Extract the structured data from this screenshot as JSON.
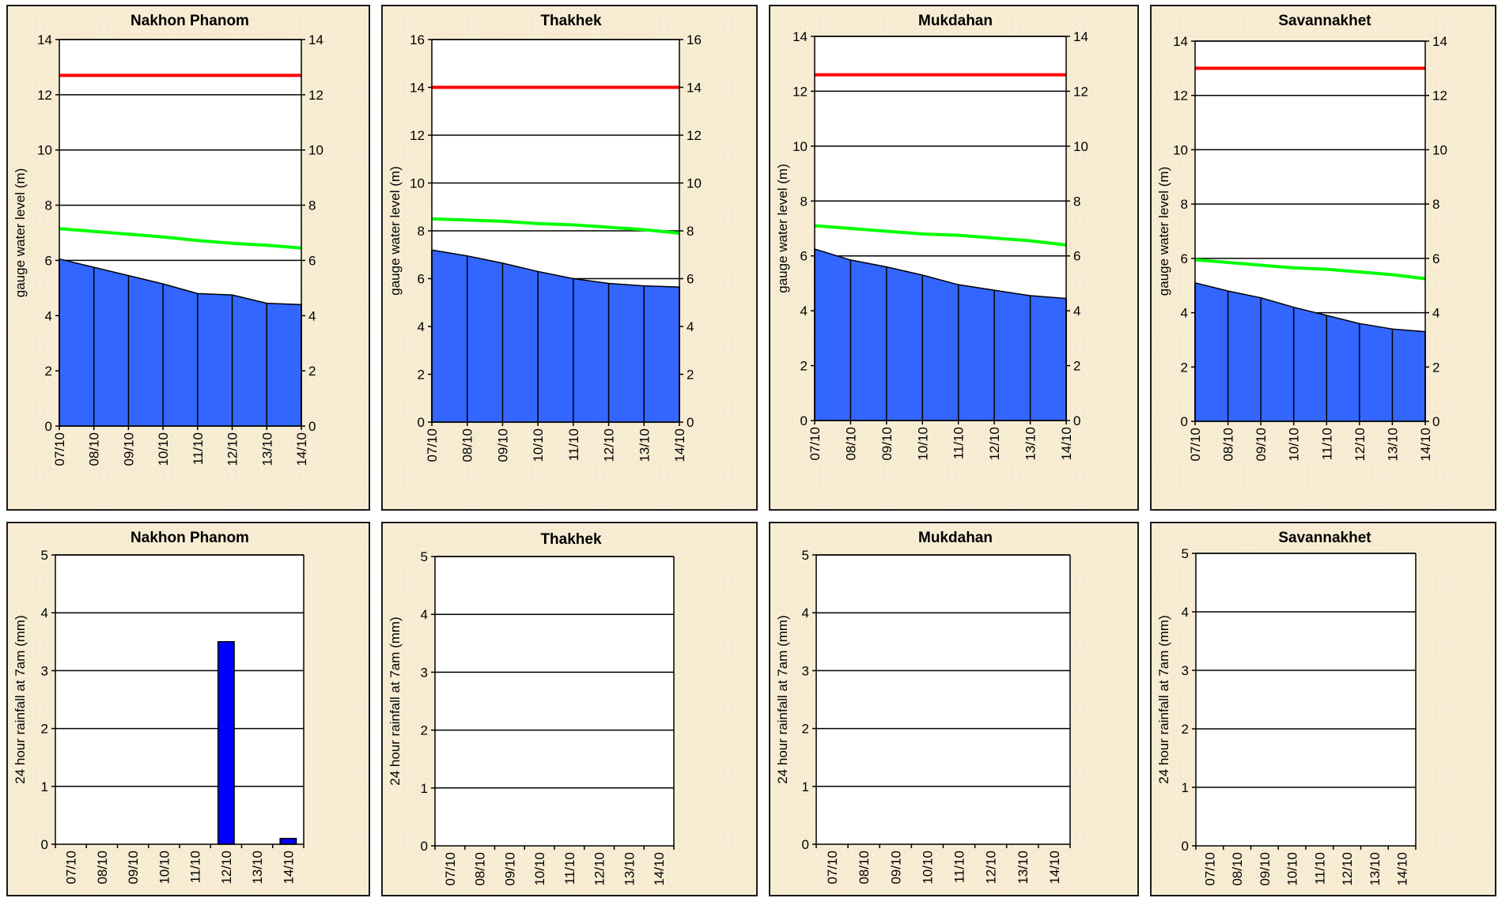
{
  "chart_data": [
    {
      "type": "area",
      "title": "Nakhon Phanom",
      "ylabel": "gauge water level (m)",
      "categories": [
        "07/10",
        "08/10",
        "09/10",
        "10/10",
        "11/10",
        "12/10",
        "13/10",
        "14/10"
      ],
      "ylim": [
        0,
        14
      ],
      "yticks": [
        0,
        2,
        4,
        6,
        8,
        10,
        12,
        14
      ],
      "right_axis": true,
      "grid": true,
      "values": [
        6.05,
        5.75,
        5.45,
        5.15,
        4.8,
        4.75,
        4.45,
        4.4
      ],
      "lines": [
        {
          "color": "#ff0000",
          "values": [
            12.7,
            12.7,
            12.7,
            12.7,
            12.7,
            12.7,
            12.7,
            12.7
          ]
        },
        {
          "color": "#00ff00",
          "values": [
            7.15,
            7.05,
            6.95,
            6.85,
            6.72,
            6.62,
            6.55,
            6.45
          ]
        }
      ]
    },
    {
      "type": "area",
      "title": "Thakhek",
      "ylabel": "gauge water level (m)",
      "categories": [
        "07/10",
        "08/10",
        "09/10",
        "10/10",
        "11/10",
        "12/10",
        "13/10",
        "14/10"
      ],
      "ylim": [
        0,
        16
      ],
      "yticks": [
        0,
        2,
        4,
        6,
        8,
        10,
        12,
        14,
        16
      ],
      "right_axis": true,
      "grid": true,
      "values": [
        7.2,
        6.95,
        6.65,
        6.3,
        6.0,
        5.8,
        5.7,
        5.65
      ],
      "lines": [
        {
          "color": "#ff0000",
          "values": [
            14.0,
            14.0,
            14.0,
            14.0,
            14.0,
            14.0,
            14.0,
            14.0
          ]
        },
        {
          "color": "#00ff00",
          "values": [
            8.5,
            8.45,
            8.4,
            8.3,
            8.25,
            8.15,
            8.05,
            7.9
          ]
        }
      ]
    },
    {
      "type": "area",
      "title": "Mukdahan",
      "ylabel": "gauge water level (m)",
      "categories": [
        "07/10",
        "08/10",
        "09/10",
        "10/10",
        "11/10",
        "12/10",
        "13/10",
        "14/10"
      ],
      "ylim": [
        0,
        14
      ],
      "yticks": [
        0,
        2,
        4,
        6,
        8,
        10,
        12,
        14
      ],
      "right_axis": true,
      "grid": true,
      "values": [
        6.25,
        5.85,
        5.6,
        5.3,
        4.95,
        4.75,
        4.55,
        4.45
      ],
      "lines": [
        {
          "color": "#ff0000",
          "values": [
            12.6,
            12.6,
            12.6,
            12.6,
            12.6,
            12.6,
            12.6,
            12.6
          ]
        },
        {
          "color": "#00ff00",
          "values": [
            7.1,
            7.0,
            6.9,
            6.8,
            6.75,
            6.65,
            6.55,
            6.4
          ]
        }
      ]
    },
    {
      "type": "area",
      "title": "Savannakhet",
      "ylabel": "gauge water level (m)",
      "categories": [
        "07/10",
        "08/10",
        "09/10",
        "10/10",
        "11/10",
        "12/10",
        "13/10",
        "14/10"
      ],
      "ylim": [
        0,
        14
      ],
      "yticks": [
        0,
        2,
        4,
        6,
        8,
        10,
        12,
        14
      ],
      "right_axis": true,
      "grid": true,
      "values": [
        5.1,
        4.8,
        4.55,
        4.2,
        3.9,
        3.6,
        3.4,
        3.3
      ],
      "lines": [
        {
          "color": "#ff0000",
          "values": [
            13.0,
            13.0,
            13.0,
            13.0,
            13.0,
            13.0,
            13.0,
            13.0
          ]
        },
        {
          "color": "#00ff00",
          "values": [
            5.95,
            5.85,
            5.75,
            5.65,
            5.6,
            5.5,
            5.4,
            5.25
          ]
        }
      ]
    },
    {
      "type": "bar",
      "title": "Nakhon Phanom",
      "ylabel": "24 hour rainfall at 7am (mm)",
      "categories": [
        "07/10",
        "08/10",
        "09/10",
        "10/10",
        "11/10",
        "12/10",
        "13/10",
        "14/10"
      ],
      "ylim": [
        0,
        5
      ],
      "yticks": [
        0,
        1,
        2,
        3,
        4,
        5
      ],
      "right_axis": false,
      "grid": true,
      "values": [
        0,
        0,
        0,
        0,
        0,
        3.5,
        0,
        0.1
      ]
    },
    {
      "type": "bar",
      "title": "Thakhek",
      "ylabel": "24 hour rainfall at 7am (mm)",
      "categories": [
        "07/10",
        "08/10",
        "09/10",
        "10/10",
        "11/10",
        "12/10",
        "13/10",
        "14/10"
      ],
      "ylim": [
        0,
        5
      ],
      "yticks": [
        0,
        1,
        2,
        3,
        4,
        5
      ],
      "right_axis": false,
      "grid": true,
      "values": [
        0,
        0,
        0,
        0,
        0,
        0,
        0,
        0
      ]
    },
    {
      "type": "bar",
      "title": "Mukdahan",
      "ylabel": "24 hour rainfall at 7am (mm)",
      "categories": [
        "07/10",
        "08/10",
        "09/10",
        "10/10",
        "11/10",
        "12/10",
        "13/10",
        "14/10"
      ],
      "ylim": [
        0,
        5
      ],
      "yticks": [
        0,
        1,
        2,
        3,
        4,
        5
      ],
      "right_axis": false,
      "grid": true,
      "values": [
        0,
        0,
        0,
        0,
        0,
        0,
        0,
        0
      ]
    },
    {
      "type": "bar",
      "title": "Savannakhet",
      "ylabel": "24 hour rainfall at 7am (mm)",
      "categories": [
        "07/10",
        "08/10",
        "09/10",
        "10/10",
        "11/10",
        "12/10",
        "13/10",
        "14/10"
      ],
      "ylim": [
        0,
        5
      ],
      "yticks": [
        0,
        1,
        2,
        3,
        4,
        5
      ],
      "right_axis": false,
      "grid": true,
      "values": [
        0,
        0,
        0,
        0,
        0,
        0,
        0,
        0
      ]
    }
  ],
  "colors": {
    "area_fill": "#3366ff",
    "bar_fill": "#0000ff",
    "panel_background": "#f7ecd2",
    "plot_background": "#ffffff"
  }
}
